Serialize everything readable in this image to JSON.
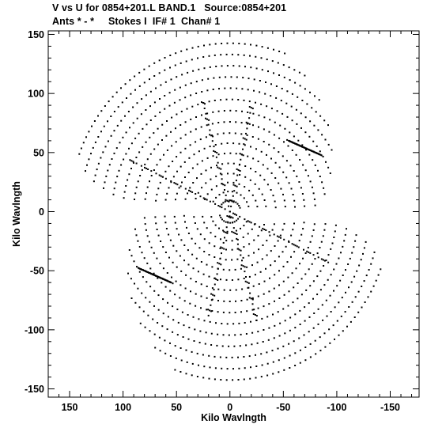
{
  "header": {
    "line1": "V vs U for 0854+201.L BAND.1   Source:0854+201",
    "line2": "Ants * - *     Stokes I  IF# 1  Chan# 1"
  },
  "chart_data": {
    "type": "scatter",
    "xlabel": "Kilo Wavlngth",
    "ylabel": "Kilo Wavlngth",
    "xlim": [
      170,
      -177
    ],
    "ylim": [
      -157,
      153
    ],
    "x_ticks": [
      150,
      100,
      50,
      0,
      -50,
      -100,
      -150
    ],
    "y_ticks": [
      150,
      100,
      50,
      0,
      -50,
      -100,
      -150
    ],
    "x_tick_labels": [
      "150",
      "100",
      "50",
      "0",
      "-50",
      "-100",
      "-150"
    ],
    "y_tick_labels": [
      "150",
      "100",
      "50",
      "0",
      "-50",
      "-100",
      "-150"
    ],
    "grid": false,
    "marker": "dot",
    "color": "#000000",
    "series": [
      {
        "description": "uv-track arcs (each point mirrored through origin)",
        "tracks": [
          {
            "cx": 0,
            "cy": 0,
            "r": 10,
            "a0": 40,
            "a1": 160
          },
          {
            "cx": 0,
            "cy": 0,
            "r": 18,
            "a0": 30,
            "a1": 165
          },
          {
            "cx": 0,
            "cy": 0,
            "r": 26,
            "a0": 25,
            "a1": 170
          },
          {
            "cx": 0,
            "cy": 0,
            "r": 34,
            "a0": 20,
            "a1": 172
          },
          {
            "cx": 0,
            "cy": 0,
            "r": 43,
            "a0": 15,
            "a1": 175
          },
          {
            "cx": 0,
            "cy": 0,
            "r": 52,
            "a0": 12,
            "a1": 175
          },
          {
            "cx": 0,
            "cy": 0,
            "r": 61,
            "a0": 10,
            "a1": 176
          },
          {
            "cx": 0,
            "cy": 0,
            "r": 70,
            "a0": 8,
            "a1": 176
          },
          {
            "cx": 0,
            "cy": 0,
            "r": 80,
            "a0": 8,
            "a1": 176
          },
          {
            "cx": 0,
            "cy": 0,
            "r": 90,
            "a0": 7,
            "a1": 170
          },
          {
            "cx": 0,
            "cy": 0,
            "r": 100,
            "a0": 7,
            "a1": 160
          },
          {
            "cx": 0,
            "cy": 0,
            "r": 110,
            "a0": 8,
            "a1": 150
          },
          {
            "cx": 0,
            "cy": 0,
            "r": 120,
            "a0": 10,
            "a1": 140
          },
          {
            "cx": 0,
            "cy": 0,
            "r": 130,
            "a0": 12,
            "a1": 130
          },
          {
            "cx": 0,
            "cy": 0,
            "r": 140,
            "a0": 15,
            "a1": 120
          },
          {
            "cx": 0,
            "cy": 0,
            "r": 150,
            "a0": 20,
            "a1": 110
          }
        ],
        "dense_spokes": [
          {
            "x0": 92,
            "y0": 43,
            "x1": -92,
            "y1": -43
          },
          {
            "x0": -20,
            "y0": 88,
            "x1": 20,
            "y1": -88
          },
          {
            "x0": -55,
            "y0": 60,
            "x1": -85,
            "y1": 48
          },
          {
            "x0": 55,
            "y0": -60,
            "x1": 85,
            "y1": -48
          },
          {
            "x0": 25,
            "y0": 92,
            "x1": -25,
            "y1": -92
          }
        ]
      }
    ]
  }
}
